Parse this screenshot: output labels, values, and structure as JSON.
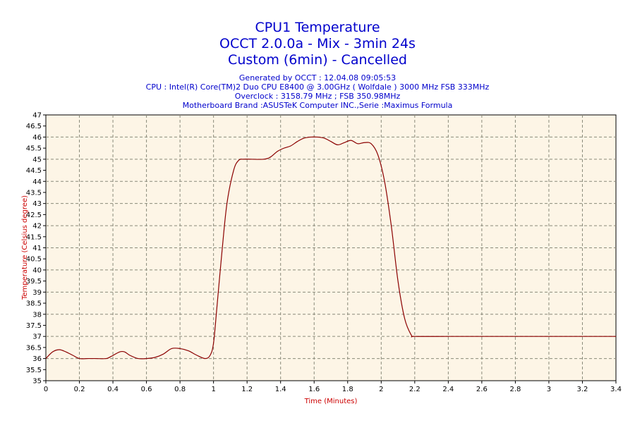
{
  "chart_data": {
    "type": "line",
    "title": [
      "CPU1 Temperature",
      "OCCT 2.0.0a - Mix - 3min 24s",
      "Custom (6min) - Cancelled"
    ],
    "subtitle": [
      "Generated by OCCT : 12.04.08 09:05:53",
      "CPU : Intel(R) Core(TM)2 Duo CPU E8400 @ 3.00GHz ( Wolfdale ) 3000 MHz FSB 333MHz",
      "Overclock : 3158.79 MHz ; FSB 350.98MHz",
      "Motherboard Brand :ASUSTeK Computer INC.,Serie :Maximus Formula"
    ],
    "xlabel": "Time (Minutes)",
    "ylabel": "Temperature (Celsius degree)",
    "xlim": [
      0,
      3.4
    ],
    "ylim": [
      35,
      47
    ],
    "x_ticks": [
      "0",
      "0.2",
      "0.4",
      "0.6",
      "0.8",
      "1",
      "1.2",
      "1.4",
      "1.6",
      "1.8",
      "2",
      "2.2",
      "2.4",
      "2.6",
      "2.8",
      "3",
      "3.2",
      "3.4"
    ],
    "y_ticks": [
      "35",
      "35.5",
      "36",
      "36.5",
      "37",
      "37.5",
      "38",
      "38.5",
      "39",
      "39.5",
      "40",
      "40.5",
      "41",
      "41.5",
      "42",
      "42.5",
      "43",
      "43.5",
      "44",
      "44.5",
      "45",
      "45.5",
      "46",
      "46.5",
      "47"
    ],
    "grid": true,
    "series": [
      {
        "x": [
          0,
          0.04,
          0.08,
          0.12,
          0.16,
          0.2,
          0.25,
          0.3,
          0.36,
          0.39,
          0.44,
          0.47,
          0.5,
          0.55,
          0.6,
          0.65,
          0.7,
          0.75,
          0.8,
          0.85,
          0.9,
          0.95,
          0.98,
          1.0,
          1.02,
          1.05,
          1.08,
          1.12,
          1.15,
          1.18,
          1.22,
          1.3,
          1.34,
          1.38,
          1.42,
          1.46,
          1.5,
          1.54,
          1.58,
          1.62,
          1.66,
          1.7,
          1.74,
          1.78,
          1.82,
          1.86,
          1.9,
          1.94,
          1.98,
          2.02,
          2.06,
          2.1,
          2.14,
          2.18,
          2.2,
          2.4,
          2.6,
          2.8,
          3.0,
          3.2,
          3.4
        ],
        "values": [
          36.0,
          36.3,
          36.4,
          36.3,
          36.15,
          36.0,
          36.0,
          36.0,
          36.0,
          36.1,
          36.3,
          36.3,
          36.15,
          36.0,
          36.0,
          36.05,
          36.2,
          36.45,
          36.45,
          36.35,
          36.15,
          36.0,
          36.15,
          36.7,
          38.3,
          40.8,
          43.0,
          44.5,
          44.95,
          45.0,
          45.0,
          45.0,
          45.1,
          45.35,
          45.5,
          45.6,
          45.8,
          45.95,
          46.0,
          46.0,
          45.95,
          45.8,
          45.65,
          45.75,
          45.85,
          45.7,
          45.75,
          45.7,
          45.2,
          44.0,
          42.0,
          39.5,
          37.8,
          37.05,
          37.0,
          37.0,
          37.0,
          37.0,
          37.0,
          37.0,
          37.0
        ],
        "color": "#8b0000"
      }
    ],
    "colors": {
      "title": "#0000cc",
      "subtitle": "#0000cc",
      "axis_label": "#cc0000",
      "plot_background": "#fdf5e6",
      "grid": "#8a8a7a",
      "axis": "#000000"
    }
  }
}
